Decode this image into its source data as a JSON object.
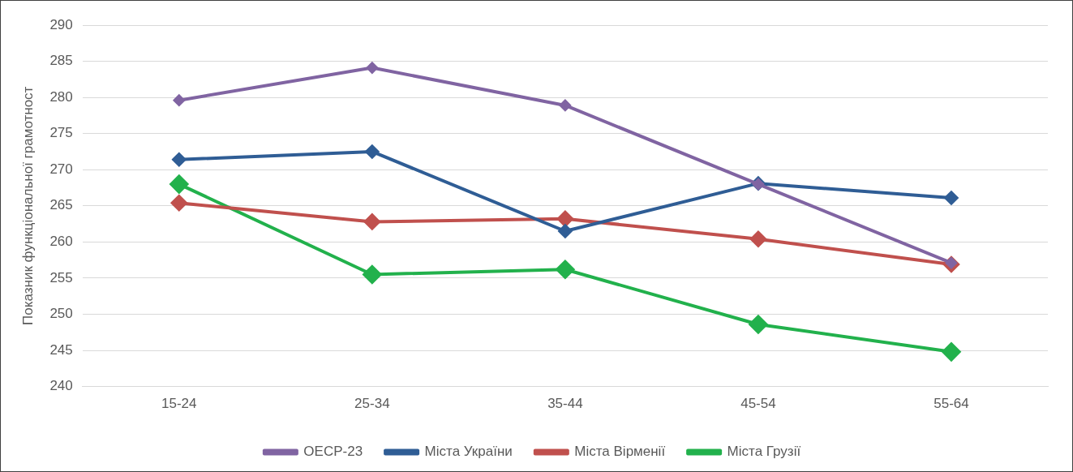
{
  "chart_data": {
    "type": "line",
    "ylabel": "Показник функціональної грамотност",
    "categories": [
      "15-24",
      "25-34",
      "35-44",
      "45-54",
      "55-64"
    ],
    "series": [
      {
        "name": "ОЕСР-23",
        "color": "#8064a2",
        "values": [
          279.6,
          284.1,
          278.9,
          268.0,
          257.1
        ]
      },
      {
        "name": "Міста України",
        "color": "#2f5d95",
        "values": [
          271.4,
          272.5,
          261.5,
          268.1,
          266.1
        ]
      },
      {
        "name": "Міста Вірменії",
        "color": "#c0504d",
        "values": [
          265.4,
          262.8,
          263.2,
          260.4,
          256.9
        ]
      },
      {
        "name": "Міста Грузії",
        "color": "#22b14c",
        "values": [
          268.0,
          255.5,
          256.2,
          248.6,
          244.8
        ]
      }
    ],
    "ylim": [
      240,
      290
    ],
    "yticks": [
      240,
      245,
      250,
      255,
      260,
      265,
      270,
      275,
      280,
      285,
      290
    ],
    "grid": "y",
    "legend": "bottom",
    "marker": "diamond",
    "line_style": "solid"
  }
}
